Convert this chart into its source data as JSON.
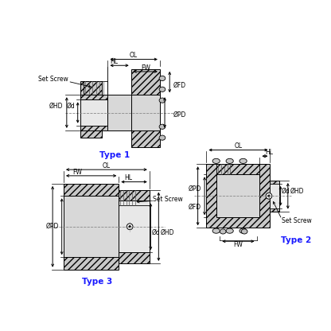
{
  "bg_color": "#ffffff",
  "lc": "#000000",
  "tc": "#1a1aff",
  "hatch_fc": "#c8c8c8",
  "bore_fc": "#e8e8e8",
  "belt_fc": "#d8d8d8",
  "type1_label": "Type 1",
  "type2_label": "Type 2",
  "type3_label": "Type 3",
  "fs_label": 5.5,
  "fs_type": 7.5
}
